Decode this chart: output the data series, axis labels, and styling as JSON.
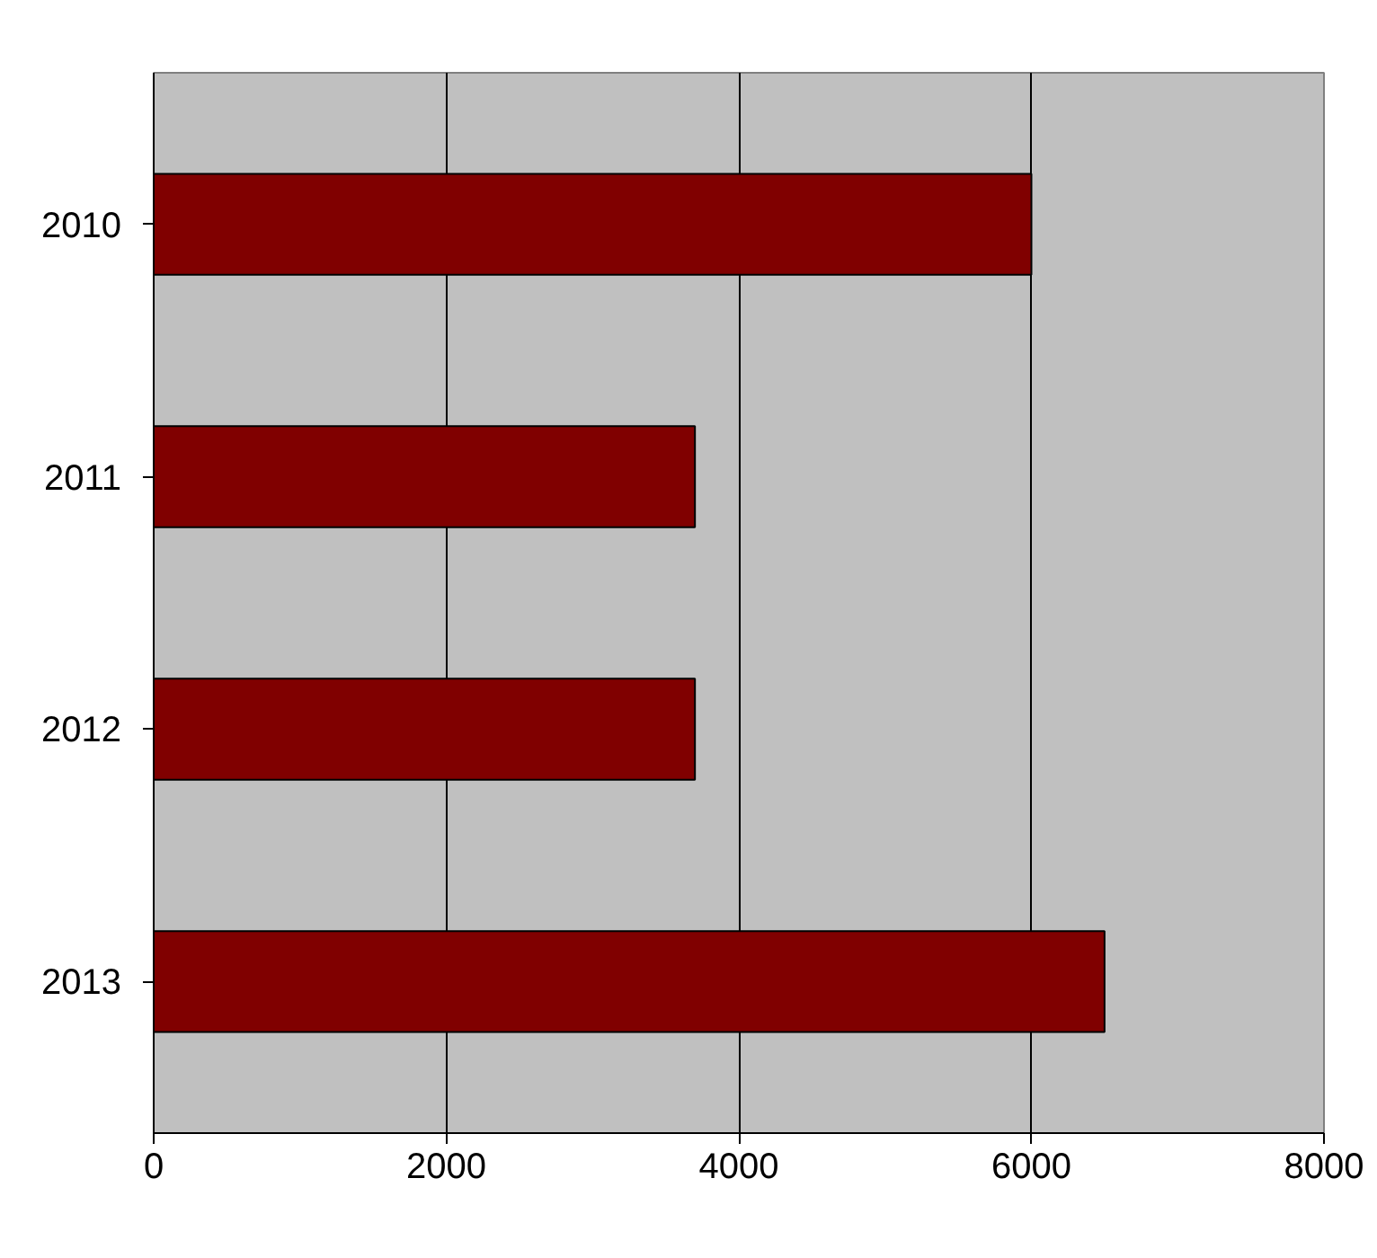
{
  "chart_data": {
    "type": "bar",
    "orientation": "horizontal",
    "categories": [
      "2010",
      "2011",
      "2012",
      "2013"
    ],
    "values": [
      6000,
      3700,
      3700,
      6500
    ],
    "color": "#800000",
    "xlim": [
      0,
      8000
    ],
    "xticks": [
      0,
      2000,
      4000,
      6000,
      8000
    ],
    "grid": "x"
  }
}
